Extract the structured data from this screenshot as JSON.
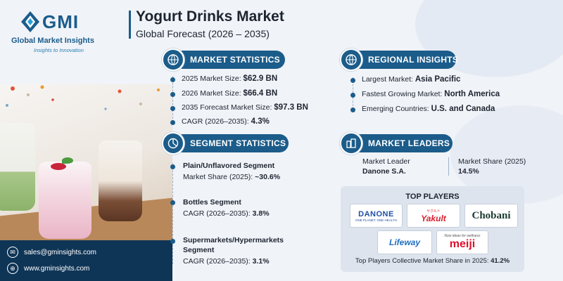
{
  "brand": {
    "name": "GMI",
    "full_name": "Global Market Insights",
    "tagline": "Insights to Innovation"
  },
  "header": {
    "title": "Yogurt Drinks Market",
    "subtitle": "Global Forecast (2026 – 2035)"
  },
  "market_statistics": {
    "heading": "MARKET STATISTICS",
    "items": [
      {
        "label": "2025 Market Size: ",
        "value": "$62.9 BN"
      },
      {
        "label": "2026 Market Size: ",
        "value": "$66.4 BN"
      },
      {
        "label": "2035 Forecast Market Size: ",
        "value": "$97.3 BN"
      },
      {
        "label": "CAGR (2026–2035): ",
        "value": "4.3%"
      }
    ]
  },
  "regional_insights": {
    "heading": "REGIONAL INSIGHTS",
    "items": [
      {
        "label": "Largest Market: ",
        "value": "Asia Pacific"
      },
      {
        "label": "Fastest Growing Market: ",
        "value": "North America"
      },
      {
        "label": "Emerging Countries: ",
        "value": "U.S. and Canada"
      }
    ]
  },
  "segment_statistics": {
    "heading": "SEGMENT STATISTICS",
    "items": [
      {
        "title": "Plain/Unflavored Segment",
        "title2": "",
        "label": "Market Share (2025): ",
        "value": "~30.6%"
      },
      {
        "title": "Bottles Segment",
        "title2": "",
        "label": "CAGR (2026–2035): ",
        "value": "3.8%"
      },
      {
        "title": "Supermarkets/Hypermarkets",
        "title2": "Segment",
        "label": "CAGR (2026–2035): ",
        "value": "3.1%"
      }
    ]
  },
  "market_leaders": {
    "heading": "MARKET LEADERS",
    "leader_label": "Market Leader",
    "leader_value": "Danone S.A.",
    "share_label": "Market Share (2025)",
    "share_value": "14.5%"
  },
  "top_players": {
    "heading": "TOP PLAYERS",
    "brands": {
      "danone": "DANONE",
      "danone_sub": "ONE PLANET. ONE HEALTH",
      "yakult_jp": "ヤクルト",
      "yakult": "Yakult",
      "chobani": "Chobani",
      "lifeway": "Lifeway",
      "meiji_sub": "Now ideas for wellness",
      "meiji": "meiji"
    },
    "footer_label": "Top Players Collective Market Share in 2025: ",
    "footer_value": "41.2%"
  },
  "contact": {
    "email": "sales@gminsights.com",
    "website": "www.gminsights.com"
  },
  "colors": {
    "primary": "#1b5c8a",
    "dark_navy": "#0f3556",
    "background": "#f0f3f8",
    "danone_blue": "#1f4fa3",
    "yakult_red": "#d81e2c",
    "chobani_green": "#1a3c2e",
    "lifeway_blue": "#1f6fc1",
    "meiji_red": "#e0122d"
  }
}
